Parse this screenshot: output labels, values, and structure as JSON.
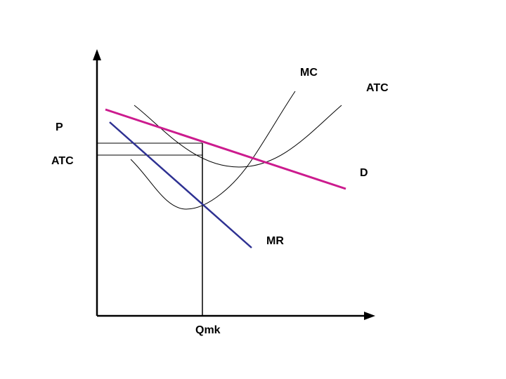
{
  "labels": {
    "mc": "MC",
    "atc": "ATC",
    "price_axis": "P",
    "atc_axis": "ATC",
    "demand": "D",
    "mr": "MR",
    "quantity": "Qmk"
  },
  "colors": {
    "axes": "#000000",
    "cost_curves": "#000000",
    "demand": "#cc1b8e",
    "mr": "#2e3192"
  }
}
